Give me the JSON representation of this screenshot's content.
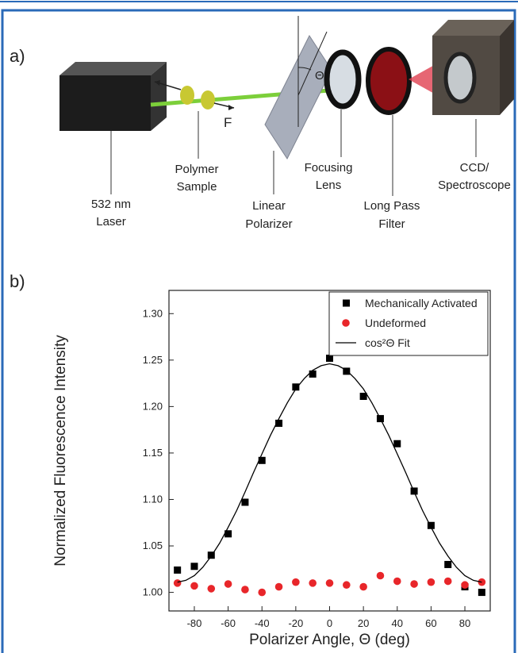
{
  "panel_labels": [
    "a)",
    "b)"
  ],
  "diagram": {
    "force_label": "F",
    "angle_label": "Θ",
    "components": [
      {
        "lines": [
          "532 nm",
          "Laser"
        ]
      },
      {
        "lines": [
          "Polymer",
          "Sample"
        ]
      },
      {
        "lines": [
          "Linear",
          "Polarizer"
        ]
      },
      {
        "lines": [
          "Focusing",
          "Lens"
        ]
      },
      {
        "lines": [
          "Long Pass",
          "Filter"
        ]
      },
      {
        "lines": [
          "CCD/",
          "Spectroscope"
        ]
      }
    ]
  },
  "chart_data": {
    "type": "scatter",
    "x_label": "Polarizer Angle, Θ (deg)",
    "y_label": "Normalized Fluorescence Intensity",
    "xlim": [
      -95,
      95
    ],
    "ylim": [
      0.98,
      1.325
    ],
    "xticks": [
      -80,
      -60,
      -40,
      -20,
      0,
      20,
      40,
      60,
      80
    ],
    "yticks": [
      {
        "value": 1.0,
        "label": "1.00"
      },
      {
        "value": 1.05,
        "label": "1.05"
      },
      {
        "value": 1.1,
        "label": "1.10"
      },
      {
        "value": 1.15,
        "label": "1.15"
      },
      {
        "value": 1.2,
        "label": "1.20"
      },
      {
        "value": 1.25,
        "label": "1.25"
      },
      {
        "value": 1.3,
        "label": "1.30"
      }
    ],
    "legend": "top-right",
    "series": [
      {
        "name": "Mechanically Activated",
        "color": "#000000",
        "marker": "square",
        "x": [
          -90,
          -80,
          -70,
          -60,
          -50,
          -40,
          -30,
          -20,
          -10,
          0,
          10,
          20,
          30,
          40,
          50,
          60,
          70,
          80,
          90
        ],
        "values": [
          1.024,
          1.028,
          1.04,
          1.063,
          1.097,
          1.142,
          1.182,
          1.221,
          1.235,
          1.252,
          1.238,
          1.211,
          1.187,
          1.16,
          1.109,
          1.072,
          1.03,
          1.006,
          1.0
        ]
      },
      {
        "name": "Undeformed",
        "color": "#e8262a",
        "marker": "circle",
        "x": [
          -90,
          -80,
          -70,
          -60,
          -50,
          -40,
          -30,
          -20,
          -10,
          0,
          10,
          20,
          30,
          40,
          50,
          60,
          70,
          80,
          90
        ],
        "values": [
          1.01,
          1.007,
          1.004,
          1.009,
          1.003,
          1.0,
          1.006,
          1.011,
          1.01,
          1.01,
          1.008,
          1.006,
          1.018,
          1.012,
          1.009,
          1.011,
          1.012,
          1.008,
          1.011
        ]
      },
      {
        "name": "cos²Θ Fit",
        "color": "#000000",
        "marker": "line",
        "x": [
          -90,
          -85,
          -80,
          -75,
          -70,
          -65,
          -60,
          -55,
          -50,
          -45,
          -40,
          -35,
          -30,
          -25,
          -20,
          -15,
          -10,
          -5,
          0,
          5,
          10,
          15,
          20,
          25,
          30,
          35,
          40,
          45,
          50,
          55,
          60,
          65,
          70,
          75,
          80,
          85,
          90
        ],
        "values": [
          1.011,
          1.013,
          1.018,
          1.027,
          1.039,
          1.053,
          1.07,
          1.088,
          1.108,
          1.129,
          1.149,
          1.169,
          1.187,
          1.204,
          1.219,
          1.23,
          1.239,
          1.244,
          1.246,
          1.244,
          1.239,
          1.23,
          1.219,
          1.204,
          1.187,
          1.169,
          1.149,
          1.129,
          1.108,
          1.088,
          1.07,
          1.053,
          1.039,
          1.027,
          1.018,
          1.013,
          1.011
        ]
      }
    ]
  }
}
